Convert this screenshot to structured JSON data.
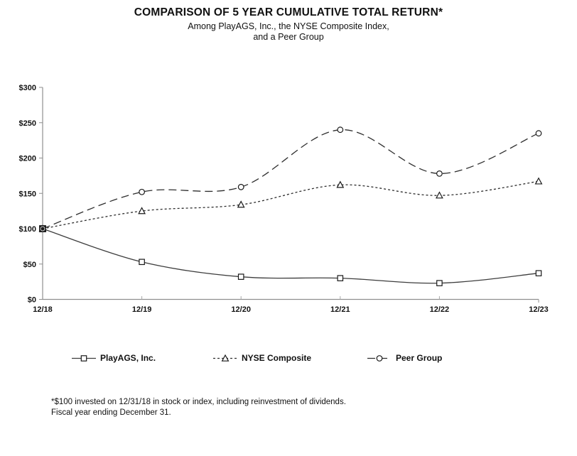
{
  "header": {
    "title": "COMPARISON OF 5 YEAR CUMULATIVE TOTAL RETURN*",
    "subtitle_line1": "Among PlayAGS, Inc., the NYSE Composite Index,",
    "subtitle_line2": "and a Peer Group"
  },
  "chart_data": {
    "type": "line",
    "categories": [
      "12/18",
      "12/19",
      "12/20",
      "12/21",
      "12/22",
      "12/23"
    ],
    "series": [
      {
        "name": "PlayAGS, Inc.",
        "values": [
          100,
          53,
          32,
          30,
          23,
          37
        ],
        "line_style": "solid",
        "marker": "square",
        "color": "#3d3d3d"
      },
      {
        "name": "NYSE Composite",
        "values": [
          100,
          125,
          134,
          162,
          147,
          167
        ],
        "line_style": "dotted",
        "marker": "triangle",
        "color": "#2e2e2e"
      },
      {
        "name": "Peer Group",
        "values": [
          100,
          152,
          159,
          240,
          178,
          235
        ],
        "line_style": "dashed",
        "marker": "circle",
        "color": "#2e2e2e"
      }
    ],
    "ylim": [
      0,
      300
    ],
    "ytick_step": 50,
    "ytick_labels": [
      "$0",
      "$50",
      "$100",
      "$150",
      "$200",
      "$250",
      "$300"
    ],
    "xlabel": "",
    "ylabel": "",
    "grid": false,
    "legend_position": "bottom",
    "axis_color": "#8f8f8f",
    "marker_fill": "#ffffff",
    "marker_stroke": "#1a1a1a"
  },
  "footnote": {
    "line1": "*$100 invested on 12/31/18 in stock or index, including reinvestment of dividends.",
    "line2": "Fiscal year ending December 31."
  }
}
